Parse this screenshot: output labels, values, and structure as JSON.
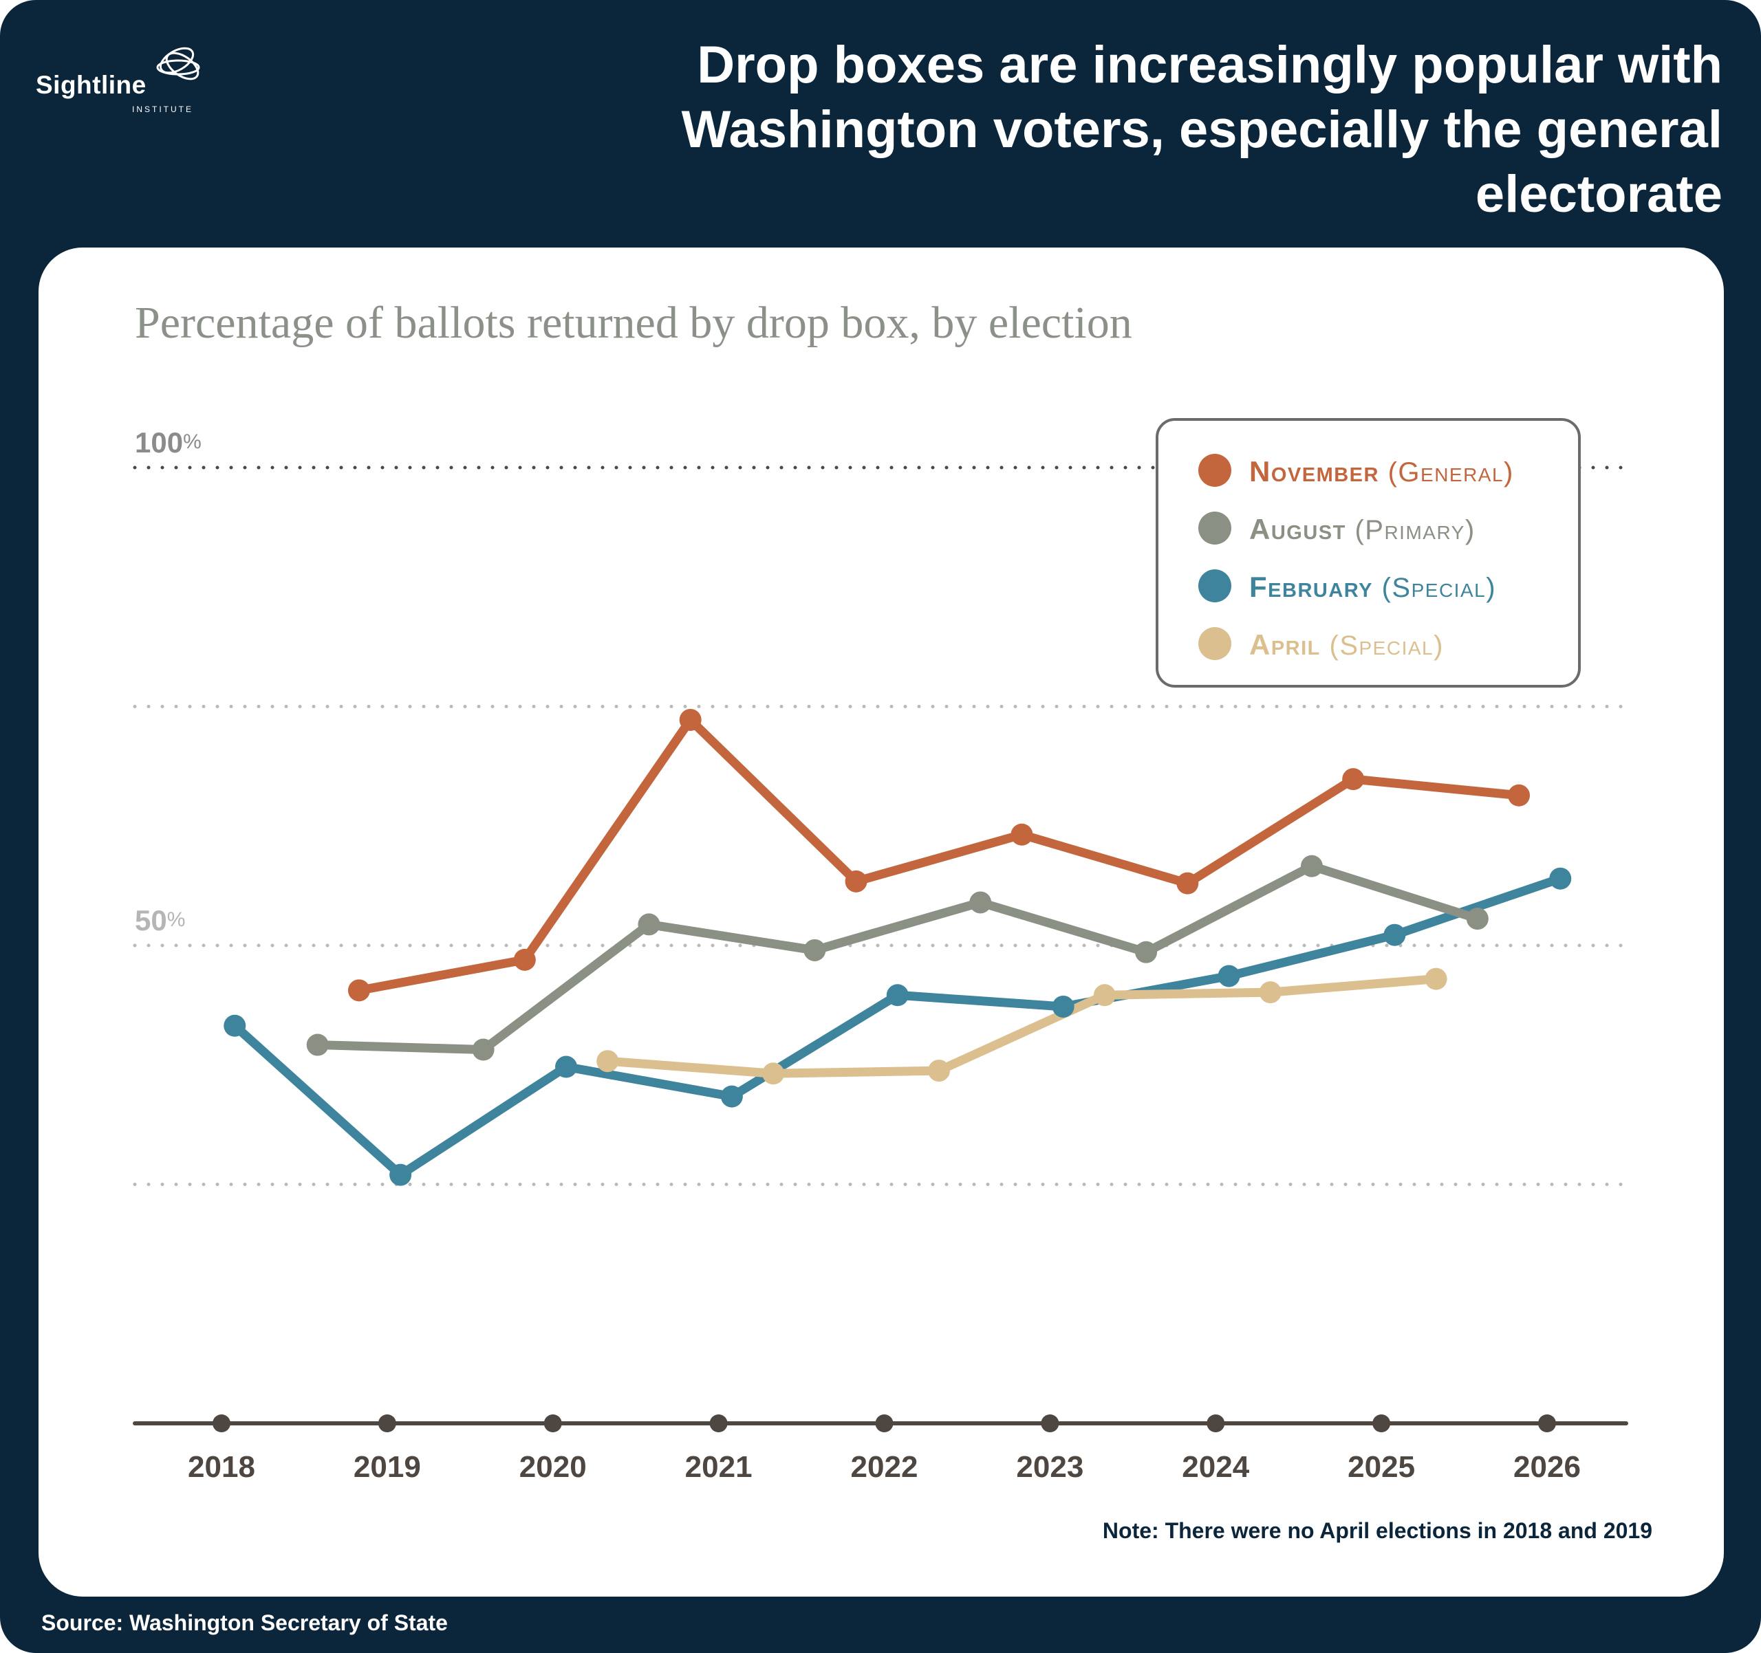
{
  "logo": {
    "name": "Sightline",
    "sub": "INSTITUTE"
  },
  "headline": "Drop boxes are increasingly popular with Washington voters, especially the general electorate",
  "source": "Source: Washington Secretary of State",
  "note": "Note: There were no April elections in 2018 and 2019",
  "colors": {
    "background": "#0b253b",
    "november": "#c4663d",
    "august": "#8a9083",
    "february": "#3f849d",
    "april": "#dcbf8e",
    "axis": "#4e4640"
  },
  "chart_data": {
    "type": "line",
    "title": "Percentage of ballots returned by drop box, by election",
    "x_ticks": [
      "2018",
      "2019",
      "2020",
      "2021",
      "2022",
      "2023",
      "2024",
      "2025",
      "2026"
    ],
    "y_ticks": [
      {
        "value": 100,
        "label": "100%"
      },
      {
        "value": 75,
        "label": ""
      },
      {
        "value": 50,
        "label": "50%"
      },
      {
        "value": 25,
        "label": ""
      }
    ],
    "ylim": [
      0,
      100
    ],
    "xlim": [
      2017.52,
      2026.52
    ],
    "grid": true,
    "legend_position": "top-right",
    "series": [
      {
        "key": "november",
        "name": "November",
        "qualifier": "(General)",
        "color": "#c4663d",
        "points": [
          [
            2018.83,
            45.3
          ],
          [
            2019.83,
            48.5
          ],
          [
            2020.83,
            73.6
          ],
          [
            2021.83,
            56.7
          ],
          [
            2022.83,
            61.6
          ],
          [
            2023.83,
            56.5
          ],
          [
            2024.83,
            67.4
          ],
          [
            2025.83,
            65.7
          ]
        ]
      },
      {
        "key": "august",
        "name": "August",
        "qualifier": "(Primary)",
        "color": "#8a9083",
        "points": [
          [
            2018.58,
            39.6
          ],
          [
            2019.58,
            39.1
          ],
          [
            2020.58,
            52.2
          ],
          [
            2021.58,
            49.5
          ],
          [
            2022.58,
            54.5
          ],
          [
            2023.58,
            49.3
          ],
          [
            2024.58,
            58.3
          ],
          [
            2025.58,
            52.8
          ]
        ]
      },
      {
        "key": "february",
        "name": "February",
        "qualifier": "(Special)",
        "color": "#3f849d",
        "points": [
          [
            2018.08,
            41.6
          ],
          [
            2019.08,
            26.0
          ],
          [
            2020.08,
            37.3
          ],
          [
            2021.08,
            34.2
          ],
          [
            2022.08,
            44.8
          ],
          [
            2023.08,
            43.6
          ],
          [
            2024.08,
            46.8
          ],
          [
            2025.08,
            51.1
          ],
          [
            2026.08,
            57.0
          ]
        ]
      },
      {
        "key": "april",
        "name": "April",
        "qualifier": "(Special)",
        "color": "#dcbf8e",
        "points": [
          [
            2020.33,
            37.9
          ],
          [
            2021.33,
            36.6
          ],
          [
            2022.33,
            36.9
          ],
          [
            2023.33,
            44.8
          ],
          [
            2024.33,
            45.1
          ],
          [
            2025.33,
            46.5
          ]
        ]
      }
    ]
  }
}
